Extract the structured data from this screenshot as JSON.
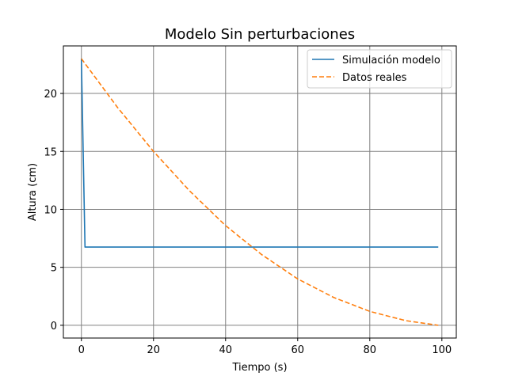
{
  "chart_data": {
    "type": "line",
    "title": "Modelo Sin perturbaciones",
    "xlabel": "Tiempo (s)",
    "ylabel": "Altura (cm)",
    "xlim": [
      -5,
      104
    ],
    "ylim": [
      -1.1,
      24.1
    ],
    "xticks": [
      0,
      20,
      40,
      60,
      80,
      100
    ],
    "yticks": [
      0,
      5,
      10,
      15,
      20
    ],
    "xtick_labels": [
      "0",
      "20",
      "40",
      "60",
      "80",
      "100"
    ],
    "ytick_labels": [
      "0",
      "5",
      "10",
      "15",
      "20"
    ],
    "grid": true,
    "grid_color": "#808080",
    "legend_position": "top-right",
    "series": [
      {
        "name": "Simulación modelo",
        "color": "#1f77b4",
        "style": "solid",
        "x": [
          0,
          1,
          99
        ],
        "y": [
          23.0,
          6.75,
          6.75
        ]
      },
      {
        "name": "Datos reales",
        "color": "#ff7f0e",
        "style": "dashed",
        "x": [
          0,
          10,
          20,
          30,
          40,
          50,
          60,
          70,
          80,
          90,
          99
        ],
        "y": [
          23.0,
          18.8,
          15.0,
          11.6,
          8.6,
          6.1,
          4.0,
          2.4,
          1.2,
          0.4,
          0.0
        ]
      }
    ]
  }
}
